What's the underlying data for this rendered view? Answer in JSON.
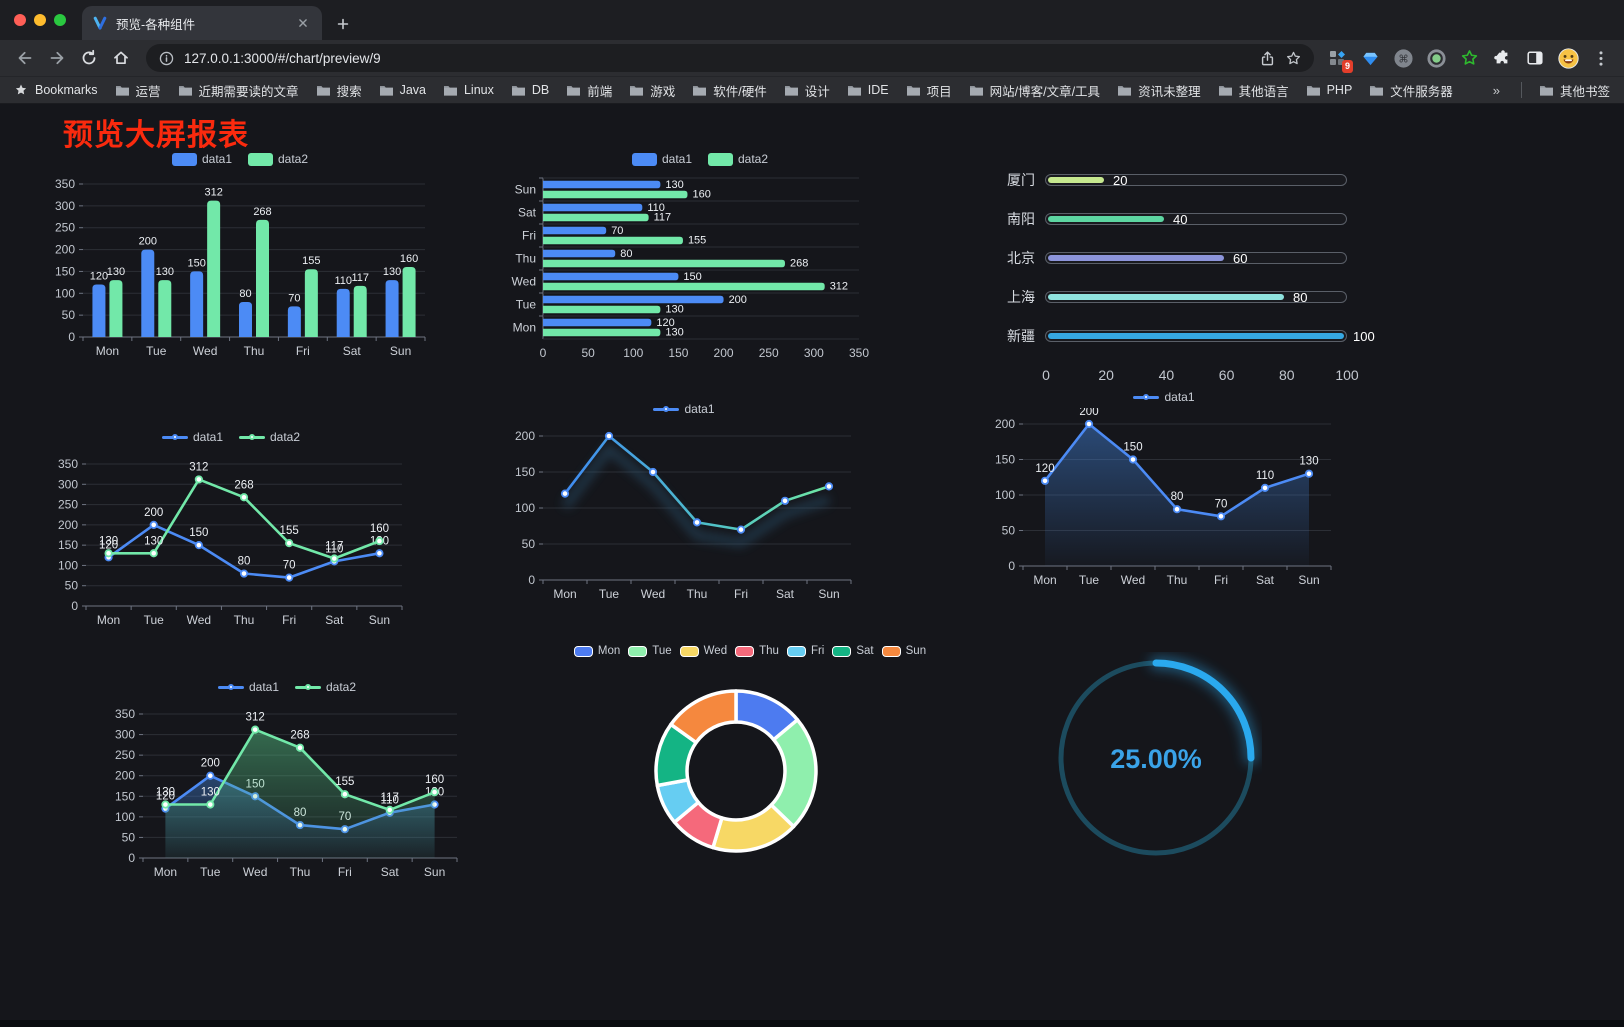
{
  "browser": {
    "tab_title": "预览-各种组件",
    "url": "127.0.0.1:3000/#/chart/preview/9",
    "extension_badge": "9",
    "bookmarks_label": "Bookmarks",
    "bookmark_folders": [
      "运营",
      "近期需要读的文章",
      "搜索",
      "Java",
      "Linux",
      "DB",
      "前端",
      "游戏",
      "软件/硬件",
      "设计",
      "IDE",
      "项目",
      "网站/博客/文章/工具",
      "资讯未整理",
      "其他语言",
      "PHP",
      "文件服务器"
    ],
    "bookmarks_overflow": "»",
    "other_bookmarks_label": "其他书签"
  },
  "page": {
    "title": "预览大屏报表",
    "title_color": "#fa2a0e",
    "background": "#15161b"
  },
  "chart_data": [
    {
      "id": "bar-vertical",
      "type": "bar",
      "legend_position": "top",
      "grid": true,
      "categories": [
        "Mon",
        "Tue",
        "Wed",
        "Thu",
        "Fri",
        "Sat",
        "Sun"
      ],
      "series": [
        {
          "name": "data1",
          "color": "#4c8bf5",
          "values": [
            120,
            200,
            150,
            80,
            70,
            110,
            130
          ]
        },
        {
          "name": "data2",
          "color": "#72e8a9",
          "values": [
            130,
            130,
            312,
            268,
            155,
            117,
            160
          ]
        }
      ],
      "ylim": [
        0,
        350
      ],
      "ytick_step": 50
    },
    {
      "id": "bar-horizontal",
      "type": "bar",
      "orientation": "horizontal",
      "legend_position": "top",
      "categories": [
        "Mon",
        "Tue",
        "Wed",
        "Thu",
        "Fri",
        "Sat",
        "Sun"
      ],
      "series": [
        {
          "name": "data1",
          "color": "#4c8bf5",
          "values": [
            120,
            200,
            150,
            80,
            70,
            110,
            130
          ]
        },
        {
          "name": "data2",
          "color": "#72e8a9",
          "values": [
            130,
            130,
            312,
            268,
            155,
            117,
            160
          ]
        }
      ],
      "xlim": [
        0,
        350
      ],
      "xtick_step": 50
    },
    {
      "id": "city-progress",
      "type": "bar",
      "orientation": "progress",
      "items": [
        {
          "label": "厦门",
          "value": 20,
          "color": "#c6e88f"
        },
        {
          "label": "南阳",
          "value": 40,
          "color": "#5dd6a2"
        },
        {
          "label": "北京",
          "value": 60,
          "color": "#8c94da"
        },
        {
          "label": "上海",
          "value": 80,
          "color": "#8fe3df"
        },
        {
          "label": "新疆",
          "value": 100,
          "color": "#36a7e1"
        }
      ],
      "xlim": [
        0,
        100
      ],
      "xticks": [
        0,
        20,
        40,
        60,
        80,
        100
      ]
    },
    {
      "id": "line-two",
      "type": "line",
      "show_labels": true,
      "categories": [
        "Mon",
        "Tue",
        "Wed",
        "Thu",
        "Fri",
        "Sat",
        "Sun"
      ],
      "series": [
        {
          "name": "data1",
          "color": "#4c8bf5",
          "values": [
            120,
            200,
            150,
            80,
            70,
            110,
            130
          ]
        },
        {
          "name": "data2",
          "color": "#72e8a9",
          "values": [
            130,
            130,
            312,
            268,
            155,
            117,
            160
          ]
        }
      ],
      "ylim": [
        0,
        350
      ],
      "ytick_step": 50
    },
    {
      "id": "line-gradient",
      "type": "line",
      "show_labels": false,
      "shadow": true,
      "categories": [
        "Mon",
        "Tue",
        "Wed",
        "Thu",
        "Fri",
        "Sat",
        "Sun"
      ],
      "series": [
        {
          "name": "data1",
          "color": "#4c8bf5",
          "marker_color": "#4c8bf5",
          "gradient": [
            [
              "0%",
              "#3f8bf2"
            ],
            [
              "55%",
              "#4fc0c8"
            ],
            [
              "100%",
              "#6fe8a4"
            ]
          ],
          "values": [
            120,
            200,
            150,
            80,
            70,
            110,
            130
          ]
        }
      ],
      "ylim": [
        0,
        200
      ],
      "ytick_step": 50
    },
    {
      "id": "area-single",
      "type": "area",
      "show_labels": true,
      "categories": [
        "Mon",
        "Tue",
        "Wed",
        "Thu",
        "Fri",
        "Sat",
        "Sun"
      ],
      "series": [
        {
          "name": "data1",
          "color": "#4c8bf5",
          "values": [
            120,
            200,
            150,
            80,
            70,
            110,
            130
          ],
          "fill": [
            "rgba(64,126,210,0.50)",
            "rgba(64,126,210,0.03)"
          ]
        }
      ],
      "ylim": [
        0,
        200
      ],
      "ytick_step": 50
    },
    {
      "id": "area-two",
      "type": "area",
      "show_labels": true,
      "categories": [
        "Mon",
        "Tue",
        "Wed",
        "Thu",
        "Fri",
        "Sat",
        "Sun"
      ],
      "series": [
        {
          "name": "data1",
          "color": "#4c8bf5",
          "values": [
            120,
            200,
            150,
            80,
            70,
            110,
            130
          ],
          "fill": [
            "rgba(64,126,210,0.45)",
            "rgba(64,126,210,0.04)"
          ]
        },
        {
          "name": "data2",
          "color": "#72e8a9",
          "values": [
            130,
            130,
            312,
            268,
            155,
            117,
            160
          ],
          "fill": [
            "rgba(84,190,130,0.50)",
            "rgba(84,190,130,0.05)"
          ]
        }
      ],
      "ylim": [
        0,
        350
      ],
      "ytick_step": 50
    },
    {
      "id": "donut",
      "type": "pie",
      "inner_radius": 0.6,
      "items": [
        {
          "name": "Mon",
          "value": 120,
          "color": "#4d7bf0"
        },
        {
          "name": "Tue",
          "value": 200,
          "color": "#8fefad"
        },
        {
          "name": "Wed",
          "value": 150,
          "color": "#f7d865"
        },
        {
          "name": "Thu",
          "value": 80,
          "color": "#f5697b"
        },
        {
          "name": "Fri",
          "value": 70,
          "color": "#66cdf2"
        },
        {
          "name": "Sat",
          "value": 110,
          "color": "#14b484"
        },
        {
          "name": "Sun",
          "value": 130,
          "color": "#f5883e"
        }
      ]
    },
    {
      "id": "gauge",
      "type": "gauge",
      "value": 25,
      "label": "25.00%",
      "color": "#2aa9ee",
      "track_color": "#1c4b5e",
      "text_color": "#3aa3e8"
    }
  ]
}
